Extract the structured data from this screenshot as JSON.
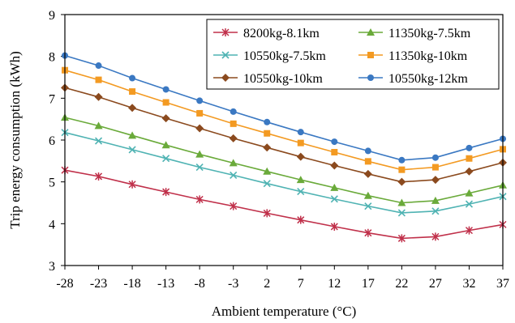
{
  "chart_data": {
    "type": "line",
    "title": "",
    "xlabel": "Ambient  temperature (°C)",
    "ylabel": "Trip energy consumption (kWh)",
    "x": [
      -28,
      -23,
      -18,
      -13,
      -8,
      -3,
      2,
      7,
      12,
      17,
      22,
      27,
      32,
      37
    ],
    "x_tick_labels": [
      "-28",
      "-23",
      "-18",
      "-13",
      "-8",
      "-3",
      "2",
      "7",
      "12",
      "17",
      "22",
      "27",
      "32",
      "37"
    ],
    "xlim": [
      -28,
      37
    ],
    "ylim": [
      3,
      9
    ],
    "y_ticks": [
      3,
      4,
      5,
      6,
      7,
      8,
      9
    ],
    "y_tick_labels": [
      "3",
      "4",
      "5",
      "6",
      "7",
      "8",
      "9"
    ],
    "grid": false,
    "legend_position": "top-right",
    "series": [
      {
        "name": "8200kg-8.1km",
        "color": "#c0304a",
        "marker": "star",
        "values": [
          5.28,
          5.13,
          4.94,
          4.76,
          4.58,
          4.42,
          4.25,
          4.09,
          3.93,
          3.78,
          3.65,
          3.69,
          3.84,
          3.98
        ]
      },
      {
        "name": "11350kg-7.5km",
        "color": "#6aaa3a",
        "marker": "triangle",
        "values": [
          6.54,
          6.34,
          6.11,
          5.88,
          5.66,
          5.45,
          5.25,
          5.05,
          4.86,
          4.67,
          4.5,
          4.55,
          4.73,
          4.92
        ]
      },
      {
        "name": "10550kg-7.5km",
        "color": "#4fb3b3",
        "marker": "x",
        "values": [
          6.18,
          5.98,
          5.77,
          5.56,
          5.35,
          5.16,
          4.96,
          4.77,
          4.59,
          4.42,
          4.26,
          4.3,
          4.47,
          4.65
        ]
      },
      {
        "name": "11350kg-10km",
        "color": "#f39a22",
        "marker": "square",
        "values": [
          7.67,
          7.44,
          7.16,
          6.9,
          6.64,
          6.39,
          6.16,
          5.93,
          5.71,
          5.49,
          5.29,
          5.35,
          5.56,
          5.78
        ]
      },
      {
        "name": "10550kg-10km",
        "color": "#8b4a1e",
        "marker": "diamond",
        "values": [
          7.25,
          7.03,
          6.77,
          6.52,
          6.28,
          6.04,
          5.82,
          5.6,
          5.39,
          5.19,
          5.0,
          5.05,
          5.25,
          5.46
        ]
      },
      {
        "name": "10550kg-12km",
        "color": "#3a78c2",
        "marker": "circle",
        "values": [
          8.02,
          7.78,
          7.48,
          7.21,
          6.94,
          6.68,
          6.43,
          6.19,
          5.96,
          5.74,
          5.52,
          5.58,
          5.81,
          6.03
        ]
      }
    ]
  }
}
